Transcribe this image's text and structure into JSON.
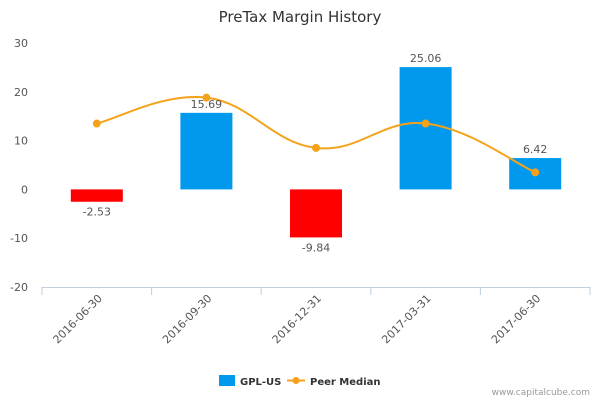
{
  "chart_data": {
    "type": "bar",
    "title": "PreTax Margin History",
    "categories": [
      "2016-06-30",
      "2016-09-30",
      "2016-12-31",
      "2017-03-31",
      "2017-06-30"
    ],
    "series": [
      {
        "name": "GPL-US",
        "kind": "bar",
        "values": [
          -2.53,
          15.69,
          -9.84,
          25.06,
          6.42
        ],
        "color": "#0099ee",
        "negative_color": "#ff0000"
      },
      {
        "name": "Peer Median",
        "kind": "line",
        "values": [
          13.5,
          18.8,
          8.5,
          13.5,
          3.5
        ],
        "color": "#f5a21b"
      }
    ],
    "data_labels": [
      "-2.53",
      "15.69",
      "-9.84",
      "25.06",
      "6.42"
    ],
    "ylim": [
      -20,
      30
    ],
    "yticks": [
      -20,
      -10,
      0,
      10,
      20,
      30
    ],
    "xlabel": "",
    "ylabel": "",
    "grid": false,
    "legend_position": "bottom"
  },
  "credit": "www.capitalcube.com"
}
